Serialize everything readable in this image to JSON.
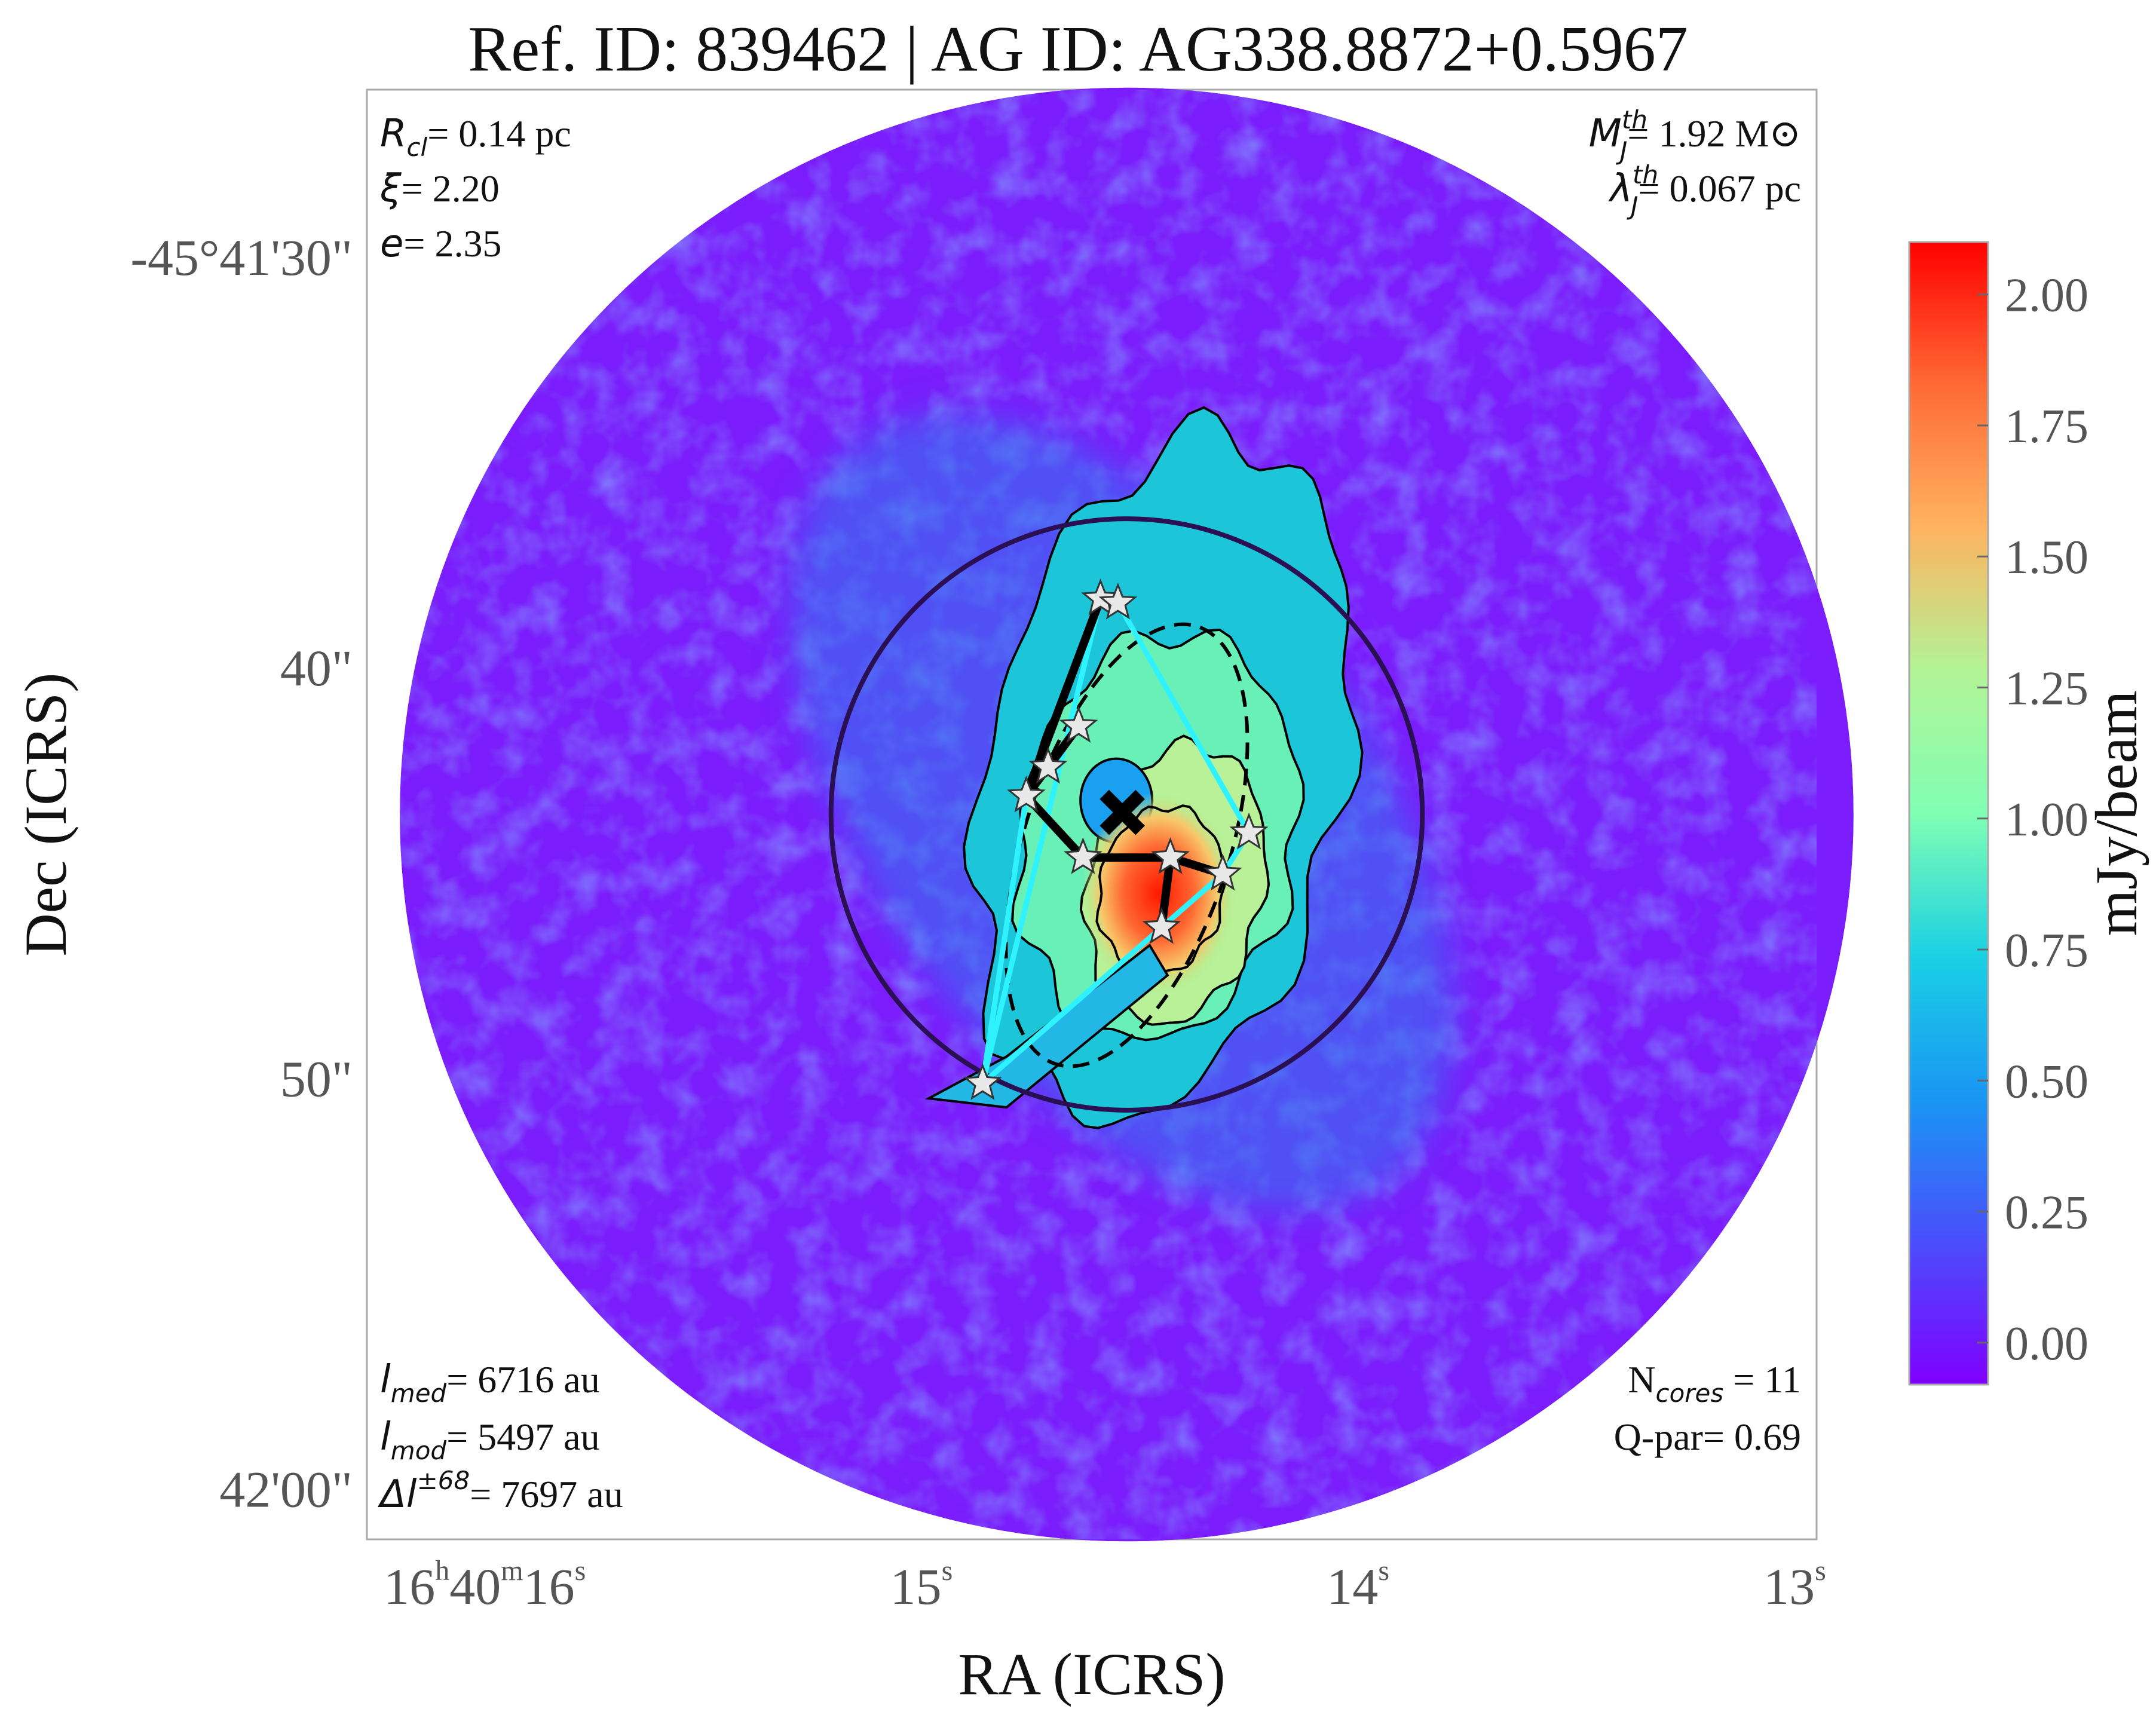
{
  "chart_data": {
    "type": "heatmap",
    "title": "Ref. ID: 839462 | AG ID: AG338.8872+0.5967",
    "xlabel": "RA (ICRS)",
    "ylabel": "Dec (ICRS)",
    "x_ticks": [
      {
        "h": "16",
        "m": "40",
        "s": "16",
        "value_s": 16
      },
      {
        "s": "15",
        "value_s": 15
      },
      {
        "s": "14",
        "value_s": 14
      },
      {
        "s": "13",
        "value_s": 13
      }
    ],
    "y_ticks": [
      {
        "label": "-45°41'30\"",
        "value_arcsec": 30
      },
      {
        "label": "40\"",
        "value_arcsec": 40
      },
      {
        "label": "50\"",
        "value_arcsec": 50
      },
      {
        "label": "42'00\"",
        "value_arcsec": 60
      }
    ],
    "ra_range_s": [
      16.27,
      12.95
    ],
    "dec_range_arcsec": [
      25.9,
      61.2
    ],
    "colorbar": {
      "label": "mJy/beam",
      "colormap": "rainbow",
      "range": [
        -0.08,
        2.1
      ],
      "ticks": [
        "0.00",
        "0.25",
        "0.50",
        "0.75",
        "1.00",
        "1.25",
        "1.50",
        "1.75",
        "2.00"
      ],
      "tick_values": [
        0,
        0.25,
        0.5,
        0.75,
        1.0,
        1.25,
        1.5,
        1.75,
        2.0
      ]
    },
    "annotations": {
      "top_left": [
        {
          "sym": "R",
          "sub": "cl",
          "sup": "",
          "value": "= 0.14 pc"
        },
        {
          "sym": "ξ",
          "sub": "",
          "sup": "",
          "value": "= 2.20"
        },
        {
          "sym": "e",
          "sub": "",
          "sup": "",
          "value": "= 2.35"
        }
      ],
      "top_right": [
        {
          "sym": "M",
          "sub": "J",
          "sup": "th",
          "value": "= 1.92 M⊙"
        },
        {
          "sym": "λ",
          "sub": "J",
          "sup": "th",
          "value": "= 0.067 pc"
        }
      ],
      "bottom_left": [
        {
          "sym": "l",
          "sub": "med",
          "sup": "",
          "value": "= 6716 au"
        },
        {
          "sym": "l",
          "sub": "mod",
          "sup": "",
          "value": "= 5497 au"
        },
        {
          "sym": "Δl",
          "sub": "",
          "sup": "±68",
          "value": "= 7697 au"
        }
      ],
      "bottom_right": [
        {
          "sym": "N",
          "sub": "cores",
          "sup": "",
          "value": " = 11"
        },
        {
          "sym": "Q-par",
          "sub": "",
          "sup": "",
          "value": "= 0.69"
        }
      ]
    },
    "map": {
      "center_ra_s": 14.53,
      "center_dec_arcsec": 43.55,
      "radius_arcsec": 17.7,
      "cluster_circle_radius_arcsec": 7.2,
      "centroid": {
        "ra_s": 14.54,
        "dec_arcsec": 43.5
      },
      "ellipse": {
        "ra_s": 14.53,
        "dec_arcsec": 44.3,
        "semi_major_arcsec": 5.6,
        "semi_minor_arcsec": 2.5,
        "tilt_deg": 18
      }
    },
    "cores": [
      {
        "id": 1,
        "ra_s": 14.59,
        "dec_arcsec": 38.3
      },
      {
        "id": 2,
        "ra_s": 14.55,
        "dec_arcsec": 38.4
      },
      {
        "id": 3,
        "ra_s": 14.64,
        "dec_arcsec": 41.4
      },
      {
        "id": 4,
        "ra_s": 14.71,
        "dec_arcsec": 42.4
      },
      {
        "id": 5,
        "ra_s": 14.76,
        "dec_arcsec": 43.1
      },
      {
        "id": 6,
        "ra_s": 14.63,
        "dec_arcsec": 44.6
      },
      {
        "id": 7,
        "ra_s": 14.43,
        "dec_arcsec": 44.6
      },
      {
        "id": 8,
        "ra_s": 14.25,
        "dec_arcsec": 44.0
      },
      {
        "id": 9,
        "ra_s": 14.31,
        "dec_arcsec": 45.0
      },
      {
        "id": 10,
        "ra_s": 14.45,
        "dec_arcsec": 46.3
      },
      {
        "id": 11,
        "ra_s": 14.86,
        "dec_arcsec": 50.1
      }
    ],
    "mst_edges_black": [
      [
        1,
        5
      ],
      [
        1,
        2
      ],
      [
        5,
        4
      ],
      [
        4,
        3
      ],
      [
        5,
        6
      ],
      [
        6,
        7
      ],
      [
        7,
        9
      ],
      [
        7,
        10
      ]
    ],
    "hull_edges_cyan": [
      [
        1,
        11
      ],
      [
        2,
        8
      ],
      [
        8,
        9
      ],
      [
        9,
        10
      ],
      [
        10,
        11
      ],
      [
        11,
        5
      ]
    ]
  }
}
